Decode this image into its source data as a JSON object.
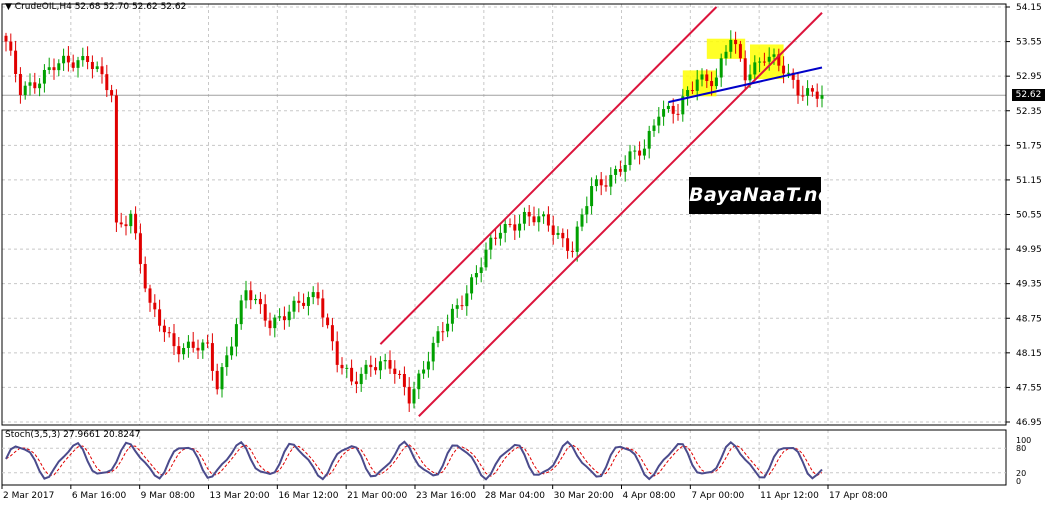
{
  "header": {
    "arrow": "▼",
    "text": "CrudeOIL,H4  52.68 52.70 52.62 52.62"
  },
  "stoch_header": {
    "text": "Stoch(3,5,3) 27.9661 20.8247"
  },
  "watermark": {
    "text": "BayaNaaT.net"
  },
  "colors": {
    "background": "#ffffff",
    "grid": "#c8c8c8",
    "bull": "#00a000",
    "bear": "#e00000",
    "channel": "#dc143c",
    "trendline": "#0000c8",
    "highlight": "#ffff00",
    "stoch_main": "#4b4b8c",
    "stoch_signal": "#e00000"
  },
  "chart_data": [
    {
      "type": "candlestick",
      "symbol": "CrudeOIL",
      "timeframe": "H4",
      "ylim": [
        46.95,
        54.15
      ],
      "y_ticks": [
        "54.15",
        "53.55",
        "52.95",
        "52.35",
        "51.75",
        "51.15",
        "50.55",
        "49.95",
        "49.35",
        "48.75",
        "48.15",
        "47.55",
        "46.95"
      ],
      "current_price": "52.62",
      "x_ticks": [
        "2 Mar 2017",
        "6 Mar 16:00",
        "9 Mar 08:00",
        "13 Mar 20:00",
        "16 Mar 12:00",
        "21 Mar 00:00",
        "23 Mar 16:00",
        "28 Mar 04:00",
        "30 Mar 20:00",
        "4 Apr 08:00",
        "7 Apr 00:00",
        "11 Apr 12:00",
        "17 Apr 08:00"
      ],
      "price_waypoints": [
        {
          "bar": 0,
          "price": 53.5
        },
        {
          "bar": 3,
          "price": 52.7
        },
        {
          "bar": 10,
          "price": 53.1
        },
        {
          "bar": 17,
          "price": 53.3
        },
        {
          "bar": 22,
          "price": 52.6
        },
        {
          "bar": 23,
          "price": 50.3
        },
        {
          "bar": 26,
          "price": 50.6
        },
        {
          "bar": 30,
          "price": 48.9
        },
        {
          "bar": 35,
          "price": 48.3
        },
        {
          "bar": 42,
          "price": 48.2
        },
        {
          "bar": 44,
          "price": 47.6
        },
        {
          "bar": 50,
          "price": 49.2
        },
        {
          "bar": 55,
          "price": 48.7
        },
        {
          "bar": 60,
          "price": 48.9
        },
        {
          "bar": 65,
          "price": 49.2
        },
        {
          "bar": 69,
          "price": 48.0
        },
        {
          "bar": 72,
          "price": 47.6
        },
        {
          "bar": 76,
          "price": 48.0
        },
        {
          "bar": 80,
          "price": 47.9
        },
        {
          "bar": 84,
          "price": 47.4
        },
        {
          "bar": 88,
          "price": 48.1
        },
        {
          "bar": 97,
          "price": 49.4
        },
        {
          "bar": 103,
          "price": 50.3
        },
        {
          "bar": 108,
          "price": 50.5
        },
        {
          "bar": 113,
          "price": 50.4
        },
        {
          "bar": 118,
          "price": 49.95
        },
        {
          "bar": 122,
          "price": 51.0
        },
        {
          "bar": 127,
          "price": 51.3
        },
        {
          "bar": 133,
          "price": 51.7
        },
        {
          "bar": 136,
          "price": 52.4
        },
        {
          "bar": 140,
          "price": 52.3
        },
        {
          "bar": 144,
          "price": 52.95
        },
        {
          "bar": 148,
          "price": 52.9
        },
        {
          "bar": 151,
          "price": 53.6
        },
        {
          "bar": 154,
          "price": 53.0
        },
        {
          "bar": 158,
          "price": 53.3
        },
        {
          "bar": 162,
          "price": 53.05
        },
        {
          "bar": 165,
          "price": 52.75
        },
        {
          "bar": 169,
          "price": 52.62
        }
      ],
      "channel_upper": [
        {
          "bar": 78,
          "price": 48.3
        },
        {
          "bar": 148,
          "price": 54.15
        }
      ],
      "channel_lower": [
        {
          "bar": 86,
          "price": 47.05
        },
        {
          "bar": 170,
          "price": 54.05
        }
      ],
      "trendline": [
        {
          "bar": 138,
          "price": 52.5
        },
        {
          "bar": 170,
          "price": 53.1
        }
      ],
      "highlight_zones": [
        {
          "bar_from": 141,
          "bar_to": 148,
          "price_from": 52.6,
          "price_to": 53.05
        },
        {
          "bar_from": 146,
          "bar_to": 154,
          "price_from": 53.25,
          "price_to": 53.6
        },
        {
          "bar_from": 155,
          "bar_to": 162,
          "price_from": 52.9,
          "price_to": 53.5
        }
      ]
    },
    {
      "type": "line",
      "name": "Stochastic Oscillator",
      "params": "Stoch(3,5,3)",
      "ylim": [
        0,
        100
      ],
      "y_ticks": [
        "100",
        "80",
        "20",
        "0"
      ],
      "main_value": 27.9661,
      "signal_value": 20.8247
    }
  ]
}
